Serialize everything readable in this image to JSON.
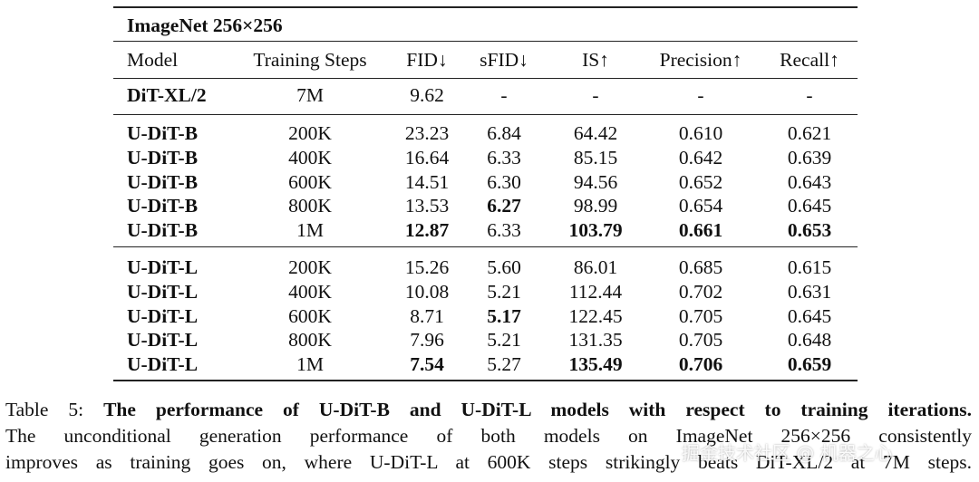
{
  "table": {
    "title": "ImageNet 256×256",
    "header": [
      "Model",
      "Training Steps",
      "FID↓",
      "sFID↓",
      "IS↑",
      "Precision↑",
      "Recall↑"
    ],
    "groups": [
      [
        {
          "cells": [
            "DiT-XL/2",
            "7M",
            "9.62",
            "-",
            "-",
            "-",
            "-"
          ],
          "bold": [
            0
          ]
        }
      ],
      [
        {
          "cells": [
            "U-DiT-B",
            "200K",
            "23.23",
            "6.84",
            "64.42",
            "0.610",
            "0.621"
          ],
          "bold": [
            0
          ]
        },
        {
          "cells": [
            "U-DiT-B",
            "400K",
            "16.64",
            "6.33",
            "85.15",
            "0.642",
            "0.639"
          ],
          "bold": [
            0
          ]
        },
        {
          "cells": [
            "U-DiT-B",
            "600K",
            "14.51",
            "6.30",
            "94.56",
            "0.652",
            "0.643"
          ],
          "bold": [
            0
          ]
        },
        {
          "cells": [
            "U-DiT-B",
            "800K",
            "13.53",
            "6.27",
            "98.99",
            "0.654",
            "0.645"
          ],
          "bold": [
            0,
            3
          ]
        },
        {
          "cells": [
            "U-DiT-B",
            "1M",
            "12.87",
            "6.33",
            "103.79",
            "0.661",
            "0.653"
          ],
          "bold": [
            0,
            2,
            4,
            5,
            6
          ]
        }
      ],
      [
        {
          "cells": [
            "U-DiT-L",
            "200K",
            "15.26",
            "5.60",
            "86.01",
            "0.685",
            "0.615"
          ],
          "bold": [
            0
          ]
        },
        {
          "cells": [
            "U-DiT-L",
            "400K",
            "10.08",
            "5.21",
            "112.44",
            "0.702",
            "0.631"
          ],
          "bold": [
            0
          ]
        },
        {
          "cells": [
            "U-DiT-L",
            "600K",
            "8.71",
            "5.17",
            "122.45",
            "0.705",
            "0.645"
          ],
          "bold": [
            0,
            3
          ]
        },
        {
          "cells": [
            "U-DiT-L",
            "800K",
            "7.96",
            "5.21",
            "131.35",
            "0.705",
            "0.648"
          ],
          "bold": [
            0
          ]
        },
        {
          "cells": [
            "U-DiT-L",
            "1M",
            "7.54",
            "5.27",
            "135.49",
            "0.706",
            "0.659"
          ],
          "bold": [
            0,
            2,
            4,
            5,
            6
          ]
        }
      ]
    ]
  },
  "caption": {
    "label": "Table 5:",
    "title": "The performance of U-DiT-B and U-DiT-L models with respect to training iterations.",
    "lines": [
      "The unconditional generation performance of both models on ImageNet 256×256 consistently",
      "improves as training goes on, where U-DiT-L at 600K steps strikingly beats DiT-XL/2 at 7M steps."
    ]
  },
  "watermark": "掘金技术社区 @ 机器之心"
}
